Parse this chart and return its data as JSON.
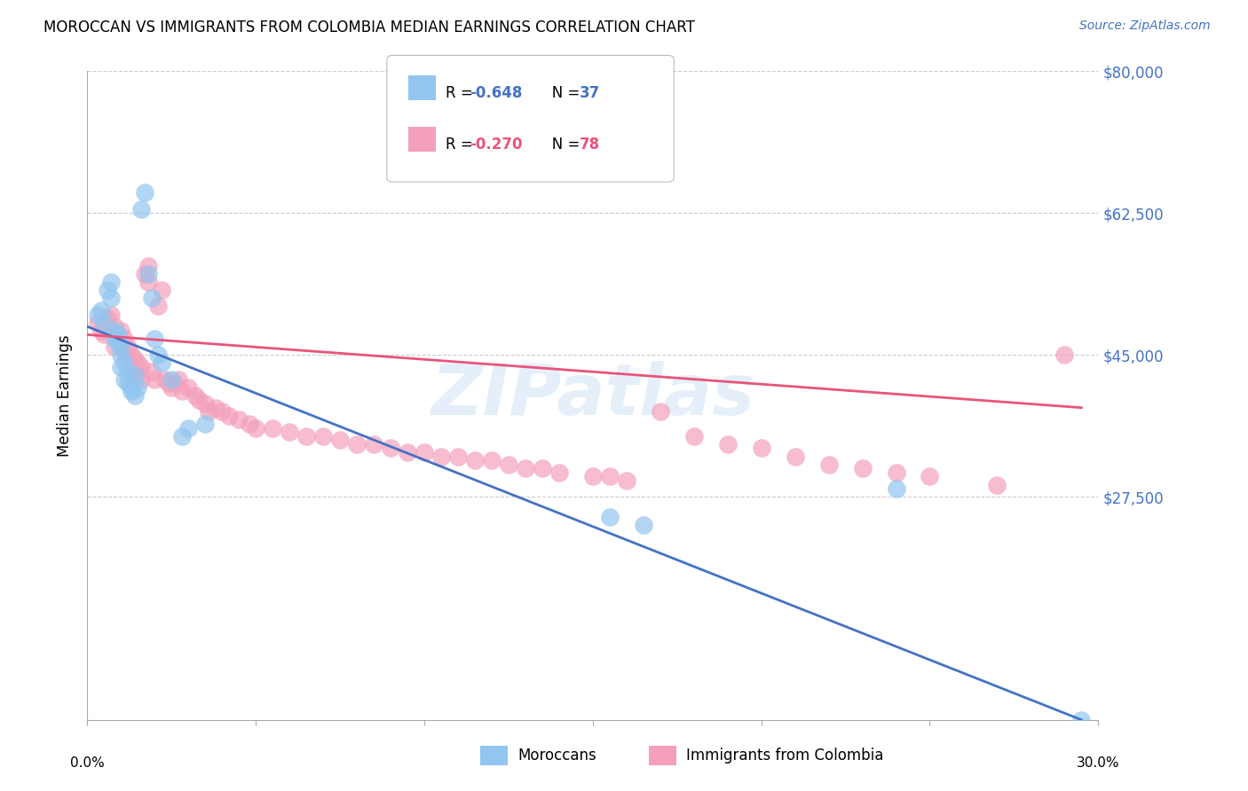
{
  "title": "MOROCCAN VS IMMIGRANTS FROM COLOMBIA MEDIAN EARNINGS CORRELATION CHART",
  "source": "Source: ZipAtlas.com",
  "ylabel": "Median Earnings",
  "yticks": [
    0,
    27500,
    45000,
    62500,
    80000
  ],
  "ytick_labels": [
    "",
    "$27,500",
    "$45,000",
    "$62,500",
    "$80,000"
  ],
  "xlim": [
    0.0,
    0.3
  ],
  "ylim": [
    0,
    80000
  ],
  "blue_color": "#92C5F0",
  "pink_color": "#F4A0BB",
  "blue_line_color": "#4472C4",
  "pink_line_color": "#E8547A",
  "watermark": "ZIPatlas",
  "blue_scatter_x": [
    0.003,
    0.004,
    0.005,
    0.006,
    0.007,
    0.007,
    0.008,
    0.008,
    0.009,
    0.009,
    0.01,
    0.01,
    0.01,
    0.011,
    0.011,
    0.012,
    0.012,
    0.013,
    0.013,
    0.014,
    0.014,
    0.015,
    0.016,
    0.017,
    0.018,
    0.019,
    0.02,
    0.021,
    0.022,
    0.025,
    0.028,
    0.03,
    0.035,
    0.155,
    0.165,
    0.24,
    0.295
  ],
  "blue_scatter_y": [
    50000,
    50500,
    49000,
    53000,
    54000,
    52000,
    48000,
    47000,
    46500,
    47500,
    46000,
    45000,
    43500,
    44000,
    42000,
    43000,
    41500,
    41000,
    40500,
    40000,
    42500,
    41000,
    63000,
    65000,
    55000,
    52000,
    47000,
    45000,
    44000,
    42000,
    35000,
    36000,
    36500,
    25000,
    24000,
    28500,
    0
  ],
  "pink_scatter_x": [
    0.003,
    0.004,
    0.005,
    0.006,
    0.007,
    0.008,
    0.008,
    0.009,
    0.01,
    0.01,
    0.011,
    0.011,
    0.012,
    0.012,
    0.013,
    0.013,
    0.014,
    0.014,
    0.015,
    0.015,
    0.016,
    0.016,
    0.017,
    0.018,
    0.018,
    0.019,
    0.02,
    0.021,
    0.022,
    0.023,
    0.024,
    0.025,
    0.026,
    0.027,
    0.028,
    0.03,
    0.032,
    0.033,
    0.035,
    0.036,
    0.038,
    0.04,
    0.042,
    0.045,
    0.048,
    0.05,
    0.055,
    0.06,
    0.065,
    0.07,
    0.075,
    0.08,
    0.085,
    0.09,
    0.095,
    0.1,
    0.105,
    0.11,
    0.115,
    0.12,
    0.125,
    0.13,
    0.135,
    0.14,
    0.15,
    0.155,
    0.16,
    0.17,
    0.18,
    0.19,
    0.2,
    0.21,
    0.22,
    0.23,
    0.24,
    0.25,
    0.27,
    0.29
  ],
  "pink_scatter_y": [
    49000,
    48000,
    47500,
    49500,
    50000,
    48500,
    46000,
    47000,
    46500,
    48000,
    45500,
    47000,
    46000,
    44500,
    45000,
    43000,
    44500,
    43000,
    42500,
    44000,
    43500,
    42000,
    55000,
    56000,
    54000,
    43000,
    42000,
    51000,
    53000,
    42000,
    41500,
    41000,
    41500,
    42000,
    40500,
    41000,
    40000,
    39500,
    39000,
    38000,
    38500,
    38000,
    37500,
    37000,
    36500,
    36000,
    36000,
    35500,
    35000,
    35000,
    34500,
    34000,
    34000,
    33500,
    33000,
    33000,
    32500,
    32500,
    32000,
    32000,
    31500,
    31000,
    31000,
    30500,
    30000,
    30000,
    29500,
    38000,
    35000,
    34000,
    33500,
    32500,
    31500,
    31000,
    30500,
    30000,
    29000,
    45000
  ]
}
